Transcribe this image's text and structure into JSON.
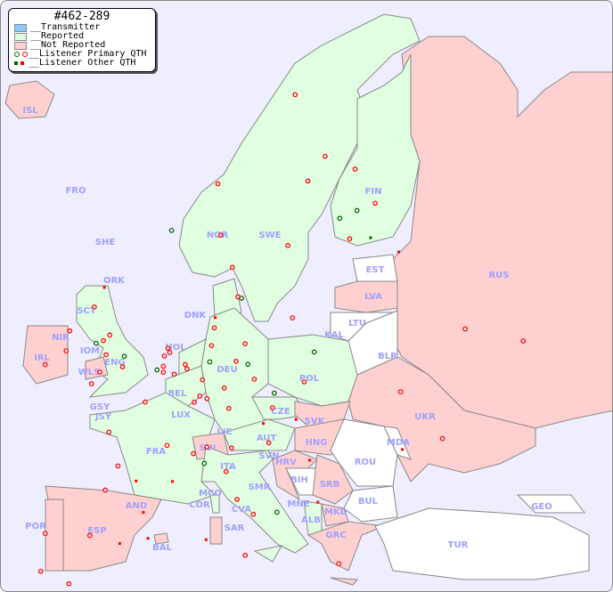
{
  "legend": {
    "title": "#462-289",
    "items": [
      {
        "label": "__Transmitter",
        "color": "#88ccff"
      },
      {
        "label": "__Reported",
        "color": "#e0ffe0"
      },
      {
        "label": "__Not Reported",
        "color": "#ffd0d0"
      },
      {
        "label": "__Listener Primary QTH",
        "colors": [
          "#006600",
          "#ff0000"
        ]
      },
      {
        "label": "__Listener Other QTH",
        "colors": [
          "#006600",
          "#ff0000"
        ]
      }
    ]
  },
  "countries": [
    {
      "code": "ISL",
      "status": "not_reported"
    },
    {
      "code": "FRO",
      "status": "none"
    },
    {
      "code": "SHE",
      "status": "reported"
    },
    {
      "code": "ORK",
      "status": "reported"
    },
    {
      "code": "SCT",
      "status": "reported"
    },
    {
      "code": "NIR",
      "status": "not_reported"
    },
    {
      "code": "IRL",
      "status": "not_reported"
    },
    {
      "code": "IOM",
      "status": "reported"
    },
    {
      "code": "WLS",
      "status": "not_reported"
    },
    {
      "code": "ENG",
      "status": "reported"
    },
    {
      "code": "GSY",
      "status": "reported"
    },
    {
      "code": "JSY",
      "status": "reported"
    },
    {
      "code": "HOL",
      "status": "reported"
    },
    {
      "code": "BEL",
      "status": "reported"
    },
    {
      "code": "LUX",
      "status": "reported"
    },
    {
      "code": "DEU",
      "status": "reported"
    },
    {
      "code": "DNK",
      "status": "reported"
    },
    {
      "code": "NOR",
      "status": "reported"
    },
    {
      "code": "SWE",
      "status": "reported"
    },
    {
      "code": "FIN",
      "status": "reported"
    },
    {
      "code": "EST",
      "status": "none"
    },
    {
      "code": "LVA",
      "status": "not_reported"
    },
    {
      "code": "LTU",
      "status": "none"
    },
    {
      "code": "KAL",
      "status": "none"
    },
    {
      "code": "BLR",
      "status": "none"
    },
    {
      "code": "POL",
      "status": "reported"
    },
    {
      "code": "CZE",
      "status": "reported"
    },
    {
      "code": "SVK",
      "status": "not_reported"
    },
    {
      "code": "HNG",
      "status": "not_reported"
    },
    {
      "code": "AUT",
      "status": "reported"
    },
    {
      "code": "LIE",
      "status": "reported"
    },
    {
      "code": "SUI",
      "status": "not_reported"
    },
    {
      "code": "FRA",
      "status": "reported"
    },
    {
      "code": "ITA",
      "status": "reported"
    },
    {
      "code": "SVN",
      "status": "reported"
    },
    {
      "code": "HRV",
      "status": "not_reported"
    },
    {
      "code": "BIH",
      "status": "none"
    },
    {
      "code": "SRB",
      "status": "not_reported"
    },
    {
      "code": "ROU",
      "status": "none"
    },
    {
      "code": "MDA",
      "status": "none"
    },
    {
      "code": "UKR",
      "status": "not_reported"
    },
    {
      "code": "RUS",
      "status": "not_reported"
    },
    {
      "code": "BUL",
      "status": "none"
    },
    {
      "code": "MKD",
      "status": "not_reported"
    },
    {
      "code": "MNE",
      "status": "reported"
    },
    {
      "code": "ALB",
      "status": "reported"
    },
    {
      "code": "GRC",
      "status": "not_reported"
    },
    {
      "code": "TUR",
      "status": "none"
    },
    {
      "code": "GEO",
      "status": "none"
    },
    {
      "code": "SMR",
      "status": "reported"
    },
    {
      "code": "CVA",
      "status": "reported"
    },
    {
      "code": "MCO",
      "status": "reported"
    },
    {
      "code": "COR",
      "status": "reported"
    },
    {
      "code": "SAR",
      "status": "not_reported"
    },
    {
      "code": "AND",
      "status": "not_reported"
    },
    {
      "code": "ESP",
      "status": "not_reported"
    },
    {
      "code": "POR",
      "status": "not_reported"
    },
    {
      "code": "BAL",
      "status": "not_reported"
    }
  ],
  "listeners": [
    [
      51.5,
      -0.1,
      "p"
    ],
    [
      52.5,
      -1.9,
      "p"
    ],
    [
      53.5,
      -2.2,
      "p"
    ],
    [
      53.8,
      -1.5,
      "p"
    ],
    [
      55.9,
      -3.2,
      "p"
    ],
    [
      57.1,
      -2.1,
      "o"
    ],
    [
      51.4,
      -2.6,
      "p"
    ],
    [
      50.7,
      -3.5,
      "p"
    ],
    [
      52.2,
      0.1,
      "pg"
    ],
    [
      53.4,
      -3.0,
      "pg"
    ],
    [
      54.6,
      -5.9,
      "p"
    ],
    [
      53.3,
      -6.3,
      "p"
    ],
    [
      52.7,
      -8.6,
      "p"
    ],
    [
      64.1,
      -21.9,
      "o"
    ],
    [
      52.4,
      4.9,
      "p"
    ],
    [
      52.1,
      5.1,
      "p"
    ],
    [
      51.9,
      4.5,
      "p"
    ],
    [
      51.2,
      4.4,
      "p"
    ],
    [
      50.8,
      4.4,
      "p"
    ],
    [
      51.0,
      3.7,
      "pg"
    ],
    [
      50.6,
      5.6,
      "p"
    ],
    [
      52.5,
      13.4,
      "p"
    ],
    [
      53.6,
      10.0,
      "p"
    ],
    [
      48.1,
      11.6,
      "p"
    ],
    [
      50.1,
      8.7,
      "p"
    ],
    [
      51.2,
      6.8,
      "p"
    ],
    [
      50.9,
      7.0,
      "p"
    ],
    [
      51.3,
      9.5,
      "pg"
    ],
    [
      49.5,
      11.1,
      "p"
    ],
    [
      48.8,
      9.2,
      "p"
    ],
    [
      51.3,
      12.4,
      "p"
    ],
    [
      51.1,
      13.7,
      "pg"
    ],
    [
      54.3,
      10.1,
      "o"
    ],
    [
      52.4,
      9.7,
      "p"
    ],
    [
      49.0,
      8.4,
      "p"
    ],
    [
      50.1,
      14.4,
      "p"
    ],
    [
      49.2,
      16.6,
      "pg"
    ],
    [
      48.2,
      16.4,
      "p"
    ],
    [
      47.1,
      15.4,
      "o"
    ],
    [
      52.2,
      21.0,
      "pg"
    ],
    [
      50.1,
      19.9,
      "p"
    ],
    [
      54.4,
      18.6,
      "p"
    ],
    [
      48.9,
      2.4,
      "p"
    ],
    [
      45.8,
      4.8,
      "p"
    ],
    [
      43.3,
      5.4,
      "o"
    ],
    [
      47.2,
      -1.6,
      "p"
    ],
    [
      44.8,
      -0.6,
      "p"
    ],
    [
      48.6,
      7.8,
      "p"
    ],
    [
      43.6,
      1.4,
      "o"
    ],
    [
      45.5,
      9.2,
      "p"
    ],
    [
      45.1,
      7.7,
      "p"
    ],
    [
      44.4,
      8.9,
      "pg"
    ],
    [
      41.9,
      12.5,
      "p"
    ],
    [
      43.8,
      11.3,
      "p"
    ],
    [
      40.9,
      14.3,
      "p"
    ],
    [
      45.4,
      11.9,
      "p"
    ],
    [
      39.2,
      9.1,
      "o"
    ],
    [
      38.1,
      13.4,
      "p"
    ],
    [
      41.1,
      16.9,
      "pg"
    ],
    [
      40.4,
      -3.7,
      "p"
    ],
    [
      41.4,
      2.2,
      "o"
    ],
    [
      37.4,
      -6.0,
      "p"
    ],
    [
      43.3,
      -2.0,
      "p"
    ],
    [
      39.5,
      -0.4,
      "o"
    ],
    [
      38.7,
      -9.1,
      "p"
    ],
    [
      41.2,
      -8.6,
      "p"
    ],
    [
      39.6,
      2.7,
      "o"
    ],
    [
      59.9,
      10.7,
      "p"
    ],
    [
      60.4,
      5.3,
      "pg"
    ],
    [
      63.4,
      10.4,
      "p"
    ],
    [
      69.6,
      18.9,
      "p"
    ],
    [
      59.3,
      18.1,
      "p"
    ],
    [
      57.7,
      12.0,
      "p"
    ],
    [
      55.6,
      13.0,
      "pg"
    ],
    [
      63.8,
      20.3,
      "p"
    ],
    [
      65.6,
      22.2,
      "p"
    ],
    [
      55.7,
      12.6,
      "p"
    ],
    [
      60.2,
      24.9,
      "p"
    ],
    [
      61.5,
      23.8,
      "pg"
    ],
    [
      65.0,
      25.5,
      "p"
    ],
    [
      62.9,
      27.7,
      "p"
    ],
    [
      62.2,
      25.7,
      "pg"
    ],
    [
      60.5,
      27.2,
      "og"
    ],
    [
      55.8,
      37.6,
      "p"
    ],
    [
      59.9,
      30.3,
      "o"
    ],
    [
      56.3,
      44.0,
      "p"
    ],
    [
      50.4,
      30.5,
      "p"
    ],
    [
      46.5,
      30.7,
      "o"
    ],
    [
      47.9,
      35.1,
      "p"
    ],
    [
      47.5,
      19.0,
      "o"
    ],
    [
      45.8,
      16.0,
      "p"
    ],
    [
      44.8,
      20.5,
      "o"
    ],
    [
      37.98,
      23.7,
      "p"
    ],
    [
      35.3,
      25.1,
      "o"
    ],
    [
      42.0,
      21.4,
      "o"
    ]
  ]
}
